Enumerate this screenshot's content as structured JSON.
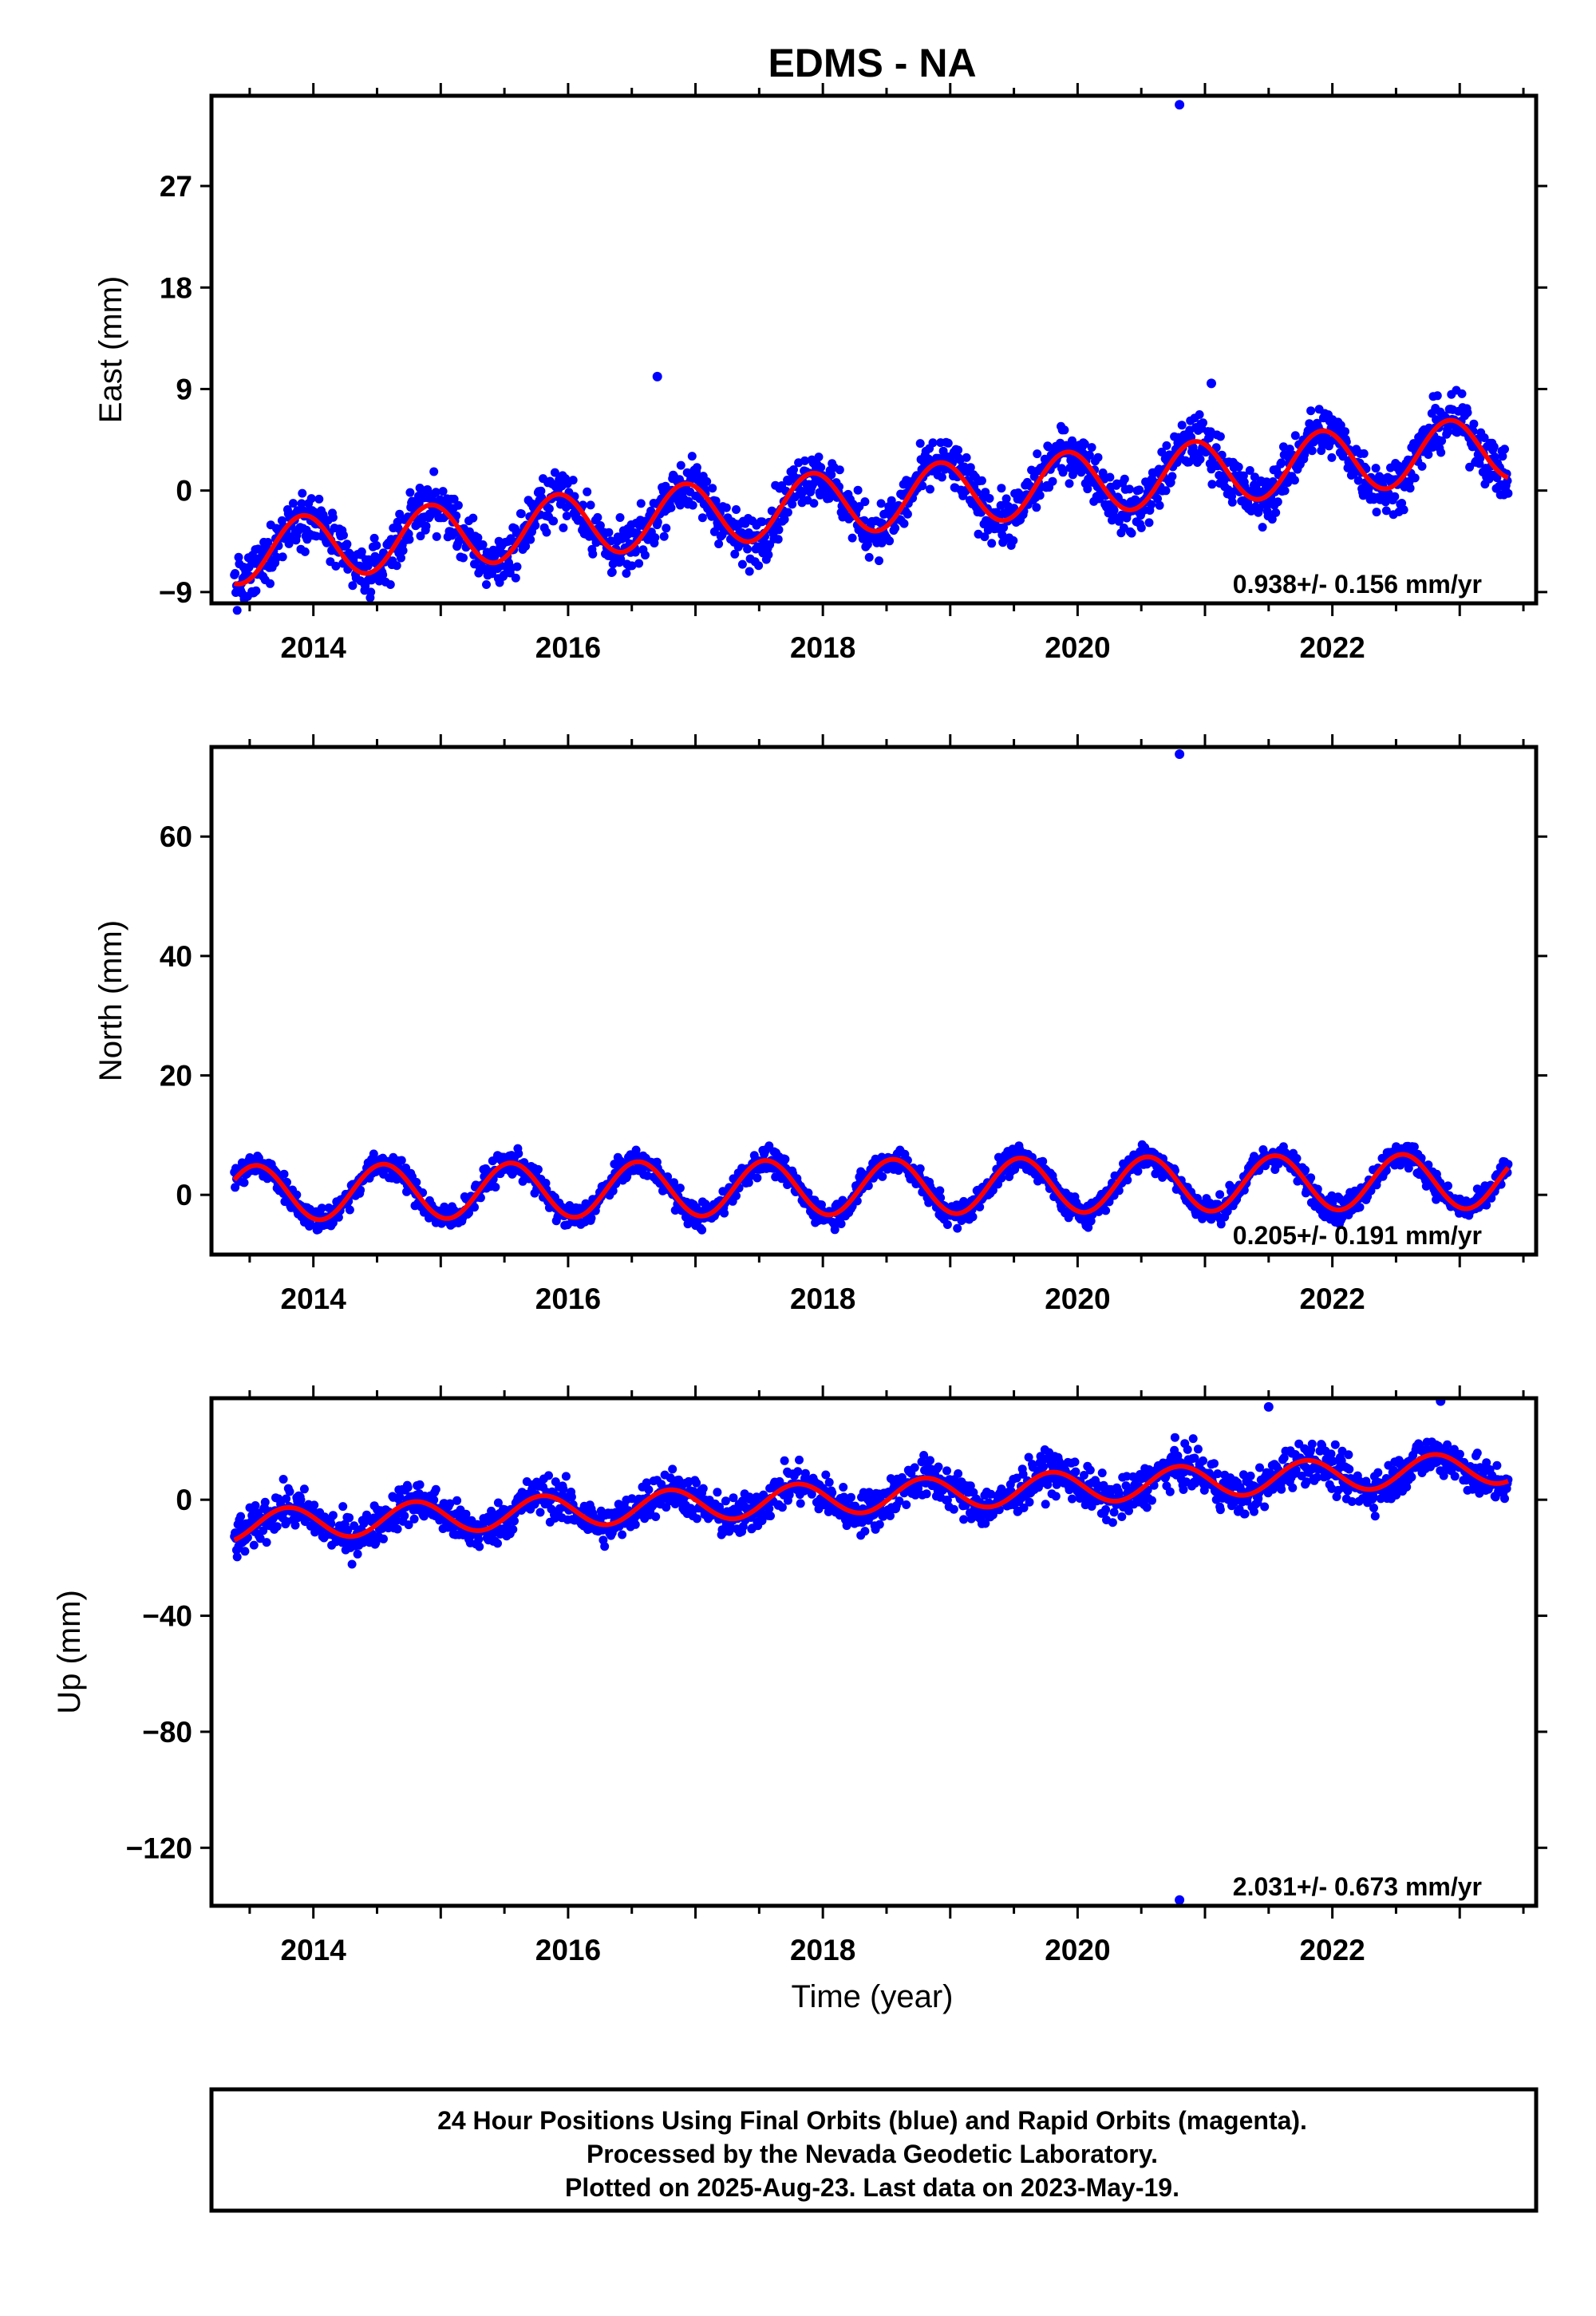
{
  "title": "EDMS - NA",
  "chart_data": [
    {
      "type": "scatter",
      "ylabel": "East (mm)",
      "xlabel": "",
      "xlim": [
        2013.2,
        2023.6
      ],
      "ylim": [
        -10,
        35
      ],
      "yticks": [
        "27",
        "18",
        "9",
        "0",
        "−9"
      ],
      "ytick_values": [
        27,
        18,
        9,
        0,
        -9
      ],
      "xticks": [
        "2014",
        "2016",
        "2018",
        "2020",
        "2022"
      ],
      "xtick_values": [
        2014,
        2016,
        2018,
        2020,
        2022
      ],
      "rate_text": "0.938+/- 0.156 mm/yr",
      "series": [
        {
          "name": "daily positions",
          "color": "#0000ff",
          "kind": "points"
        },
        {
          "name": "model fit",
          "color": "#ff0000",
          "kind": "line"
        }
      ],
      "model": {
        "t0": 2013.4,
        "offset": -5.5,
        "rate": 0.938,
        "amplitude": 2.8,
        "peak_phase": 0.92
      },
      "noise": 1.6,
      "outliers": [
        [
          2020.8,
          34.2
        ],
        [
          2016.7,
          10.1
        ],
        [
          2021.05,
          9.5
        ]
      ]
    },
    {
      "type": "scatter",
      "ylabel": "North (mm)",
      "xlabel": "",
      "xlim": [
        2013.2,
        2023.6
      ],
      "ylim": [
        -10,
        75
      ],
      "yticks": [
        "60",
        "40",
        "20",
        "0"
      ],
      "ytick_values": [
        60,
        40,
        20,
        0
      ],
      "xticks": [
        "2014",
        "2016",
        "2018",
        "2020",
        "2022"
      ],
      "xtick_values": [
        2014,
        2016,
        2018,
        2020,
        2022
      ],
      "rate_text": "0.205+/- 0.191 mm/yr",
      "series": [
        {
          "name": "daily positions",
          "color": "#0000ff",
          "kind": "points"
        },
        {
          "name": "model fit",
          "color": "#ff0000",
          "kind": "line"
        }
      ],
      "model": {
        "t0": 2013.4,
        "offset": 0.3,
        "rate": 0.205,
        "amplitude": 4.6,
        "peak_phase": 0.55
      },
      "noise": 1.5,
      "outliers": [
        [
          2020.8,
          73.8
        ]
      ]
    },
    {
      "type": "scatter",
      "ylabel": "Up (mm)",
      "xlabel": "Time (year)",
      "xlim": [
        2013.2,
        2023.6
      ],
      "ylim": [
        -140,
        35
      ],
      "yticks": [
        "0",
        "−40",
        "−80",
        "−120"
      ],
      "ytick_values": [
        0,
        -40,
        -80,
        -120
      ],
      "xticks": [
        "2014",
        "2016",
        "2018",
        "2020",
        "2022"
      ],
      "xtick_values": [
        2014,
        2016,
        2018,
        2020,
        2022
      ],
      "rate_text": "2.031+/- 0.673 mm/yr",
      "series": [
        {
          "name": "daily positions",
          "color": "#0000ff",
          "kind": "points"
        },
        {
          "name": "model fit",
          "color": "#ff0000",
          "kind": "line"
        }
      ],
      "model": {
        "t0": 2013.4,
        "offset": -9,
        "rate": 2.031,
        "amplitude": 5.5,
        "peak_phase": 0.8
      },
      "noise": 5,
      "outliers": [
        [
          2020.8,
          -138
        ],
        [
          2021.5,
          32
        ],
        [
          2022.85,
          34
        ]
      ]
    }
  ],
  "footer": {
    "line1": "24 Hour Positions Using Final Orbits (blue) and Rapid Orbits (magenta).",
    "line2": "Processed by the Nevada Geodetic Laboratory.",
    "line3": "Plotted on 2025-Aug-23. Last data on 2023-May-19."
  }
}
